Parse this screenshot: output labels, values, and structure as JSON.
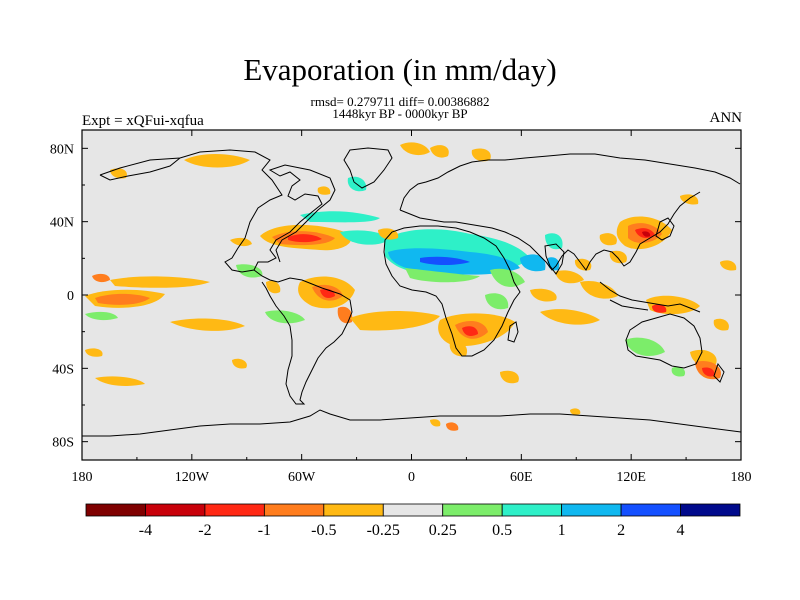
{
  "title": "Evaporation (in mm/day)",
  "subtitle": "rmsd= 0.279711 diff= 0.00386882",
  "period": "1448kyr BP - 0000kyr BP",
  "left_label": "Expt = xQFui-xqfua",
  "right_label": "ANN",
  "lat_ticks": [
    {
      "lat": 80,
      "label": "80N"
    },
    {
      "lat": 40,
      "label": "40N"
    },
    {
      "lat": 0,
      "label": "0"
    },
    {
      "lat": -40,
      "label": "40S"
    },
    {
      "lat": -80,
      "label": "80S"
    }
  ],
  "lon_ticks": [
    {
      "lon": -180,
      "label": "180"
    },
    {
      "lon": -120,
      "label": "120W"
    },
    {
      "lon": -60,
      "label": "60W"
    },
    {
      "lon": 0,
      "label": "0"
    },
    {
      "lon": 60,
      "label": "60E"
    },
    {
      "lon": 120,
      "label": "120E"
    },
    {
      "lon": 180,
      "label": "180"
    }
  ],
  "colorbar": {
    "colors": [
      "#7f0000",
      "#c8000a",
      "#ff2814",
      "#ff7d1e",
      "#ffb914",
      "#e6e6e6",
      "#7ced6a",
      "#2ef0c8",
      "#10b8f0",
      "#1450ff",
      "#000a8c"
    ],
    "labels": [
      "-4",
      "-2",
      "-1",
      "-0.5",
      "-0.25",
      "0.25",
      "0.5",
      "1",
      "2",
      "4"
    ]
  },
  "colors": {
    "ocean": "#e6e6e6",
    "coast": "#000000"
  }
}
